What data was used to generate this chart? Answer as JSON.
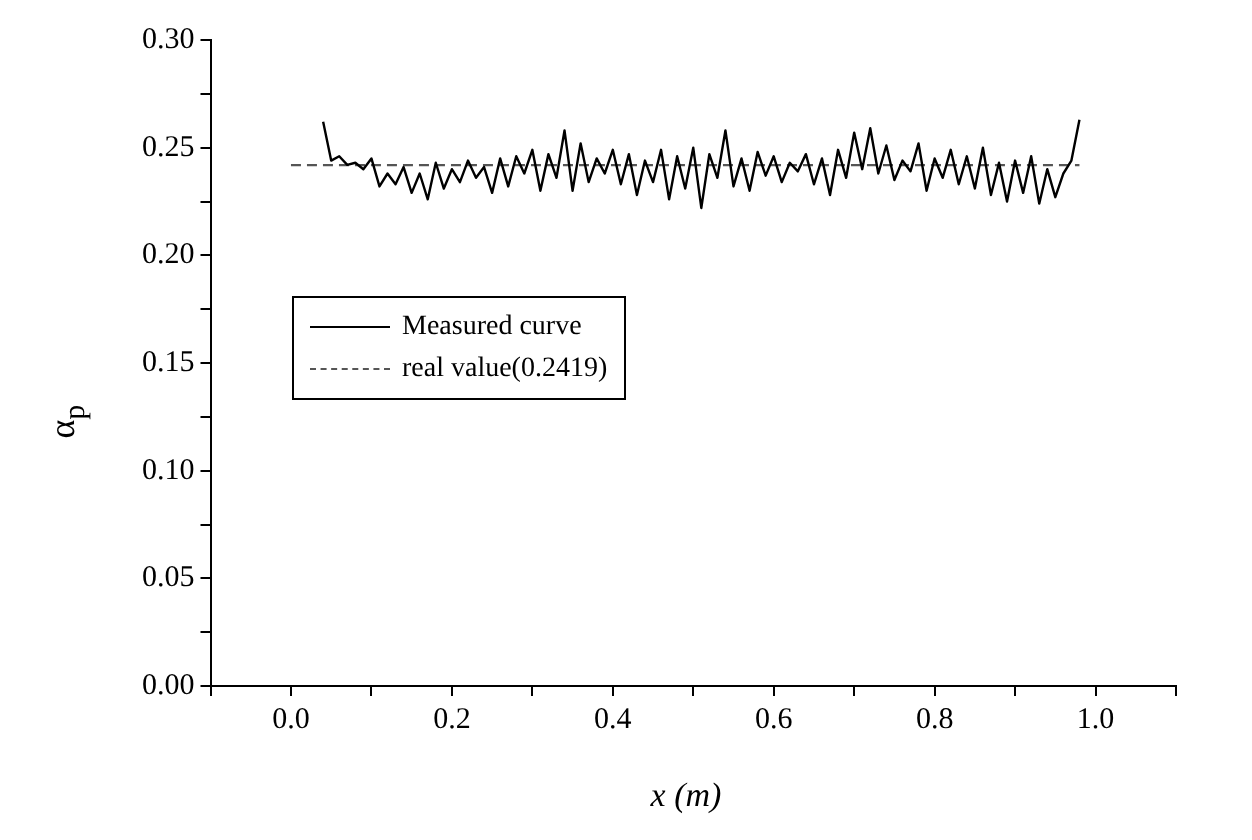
{
  "chart_data": {
    "type": "line",
    "xlabel": "x (m)",
    "ylabel": "α$_{p}$",
    "xlim": [
      -0.1,
      1.1
    ],
    "ylim": [
      0,
      0.3
    ],
    "xticks": [
      {
        "value": -0.1,
        "label": null
      },
      {
        "value": 0,
        "label": "0.0"
      },
      {
        "value": 0.1,
        "label": null
      },
      {
        "value": 0.2,
        "label": "0.2"
      },
      {
        "value": 0.3,
        "label": null
      },
      {
        "value": 0.4,
        "label": "0.4"
      },
      {
        "value": 0.5,
        "label": null
      },
      {
        "value": 0.6,
        "label": "0.6"
      },
      {
        "value": 0.7,
        "label": null
      },
      {
        "value": 0.8,
        "label": "0.8"
      },
      {
        "value": 0.9,
        "label": null
      },
      {
        "value": 1.0,
        "label": "1.0"
      },
      {
        "value": 1.1,
        "label": null
      }
    ],
    "yticks": [
      {
        "value": 0,
        "label": "0.00"
      },
      {
        "value": 0.025,
        "label": null
      },
      {
        "value": 0.05,
        "label": "0.05"
      },
      {
        "value": 0.075,
        "label": null
      },
      {
        "value": 0.1,
        "label": "0.10"
      },
      {
        "value": 0.125,
        "label": null
      },
      {
        "value": 0.15,
        "label": "0.15"
      },
      {
        "value": 0.175,
        "label": null
      },
      {
        "value": 0.2,
        "label": "0.20"
      },
      {
        "value": 0.225,
        "label": null
      },
      {
        "value": 0.25,
        "label": "0.25"
      },
      {
        "value": 0.275,
        "label": null
      },
      {
        "value": 0.3,
        "label": "0.30"
      }
    ],
    "legend": "left",
    "grid": false,
    "marker": "none",
    "series": [
      {
        "name": "Measured curve",
        "color": "#000000",
        "line_style": "solid",
        "x": [
          0.04,
          0.05,
          0.06,
          0.07,
          0.08,
          0.09,
          0.1,
          0.11,
          0.12,
          0.13,
          0.14,
          0.15,
          0.16,
          0.17,
          0.18,
          0.19,
          0.2,
          0.21,
          0.22,
          0.23,
          0.24,
          0.25,
          0.26,
          0.27,
          0.28,
          0.29,
          0.3,
          0.31,
          0.32,
          0.33,
          0.34,
          0.35,
          0.36,
          0.37,
          0.38,
          0.39,
          0.4,
          0.41,
          0.42,
          0.43,
          0.44,
          0.45,
          0.46,
          0.47,
          0.48,
          0.49,
          0.5,
          0.51,
          0.52,
          0.53,
          0.54,
          0.55,
          0.56,
          0.57,
          0.58,
          0.59,
          0.6,
          0.61,
          0.62,
          0.63,
          0.64,
          0.65,
          0.66,
          0.67,
          0.68,
          0.69,
          0.7,
          0.71,
          0.72,
          0.73,
          0.74,
          0.75,
          0.76,
          0.77,
          0.78,
          0.79,
          0.8,
          0.81,
          0.82,
          0.83,
          0.84,
          0.85,
          0.86,
          0.87,
          0.88,
          0.89,
          0.9,
          0.91,
          0.92,
          0.93,
          0.94,
          0.95,
          0.96,
          0.97,
          0.98
        ],
        "values": [
          0.262,
          0.244,
          0.246,
          0.242,
          0.243,
          0.24,
          0.245,
          0.232,
          0.238,
          0.233,
          0.241,
          0.229,
          0.238,
          0.226,
          0.243,
          0.231,
          0.24,
          0.234,
          0.244,
          0.236,
          0.241,
          0.229,
          0.245,
          0.232,
          0.246,
          0.238,
          0.249,
          0.23,
          0.247,
          0.236,
          0.258,
          0.23,
          0.252,
          0.234,
          0.245,
          0.238,
          0.249,
          0.233,
          0.247,
          0.228,
          0.244,
          0.234,
          0.249,
          0.226,
          0.246,
          0.231,
          0.25,
          0.222,
          0.247,
          0.236,
          0.258,
          0.232,
          0.245,
          0.23,
          0.248,
          0.237,
          0.246,
          0.234,
          0.243,
          0.239,
          0.247,
          0.233,
          0.245,
          0.228,
          0.249,
          0.236,
          0.257,
          0.24,
          0.259,
          0.238,
          0.251,
          0.235,
          0.244,
          0.239,
          0.252,
          0.23,
          0.245,
          0.236,
          0.249,
          0.233,
          0.246,
          0.231,
          0.25,
          0.228,
          0.243,
          0.225,
          0.244,
          0.229,
          0.246,
          0.224,
          0.24,
          0.227,
          0.238,
          0.244,
          0.263
        ]
      },
      {
        "name": "real value(0.2419)",
        "color": "#555555",
        "line_style": "dashed",
        "x": [
          0,
          0.98
        ],
        "values": [
          0.2419,
          0.2419
        ]
      }
    ]
  }
}
